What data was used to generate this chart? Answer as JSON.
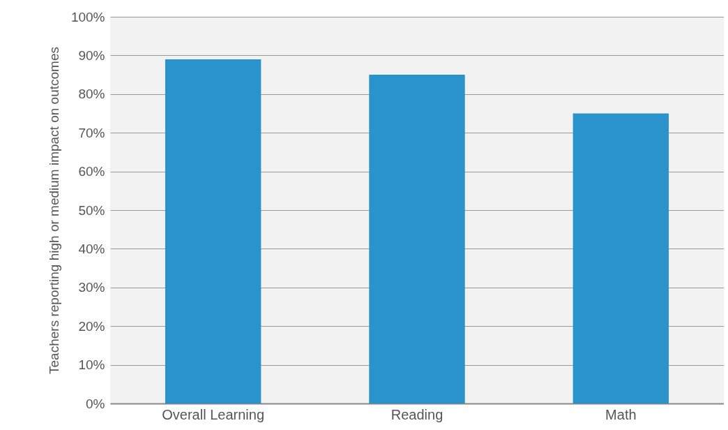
{
  "chart_data": {
    "type": "bar",
    "ylabel": "Teachers reporting high or medium impact on outcomes",
    "categories": [
      "Overall Learning",
      "Reading",
      "Math"
    ],
    "values": [
      89,
      85,
      75
    ],
    "color": "#2b93cc",
    "ylim": [
      0,
      100
    ],
    "yticks": [
      {
        "value": 0,
        "label": "0%"
      },
      {
        "value": 10,
        "label": "10%"
      },
      {
        "value": 20,
        "label": "20%"
      },
      {
        "value": 30,
        "label": "30%"
      },
      {
        "value": 40,
        "label": "40%"
      },
      {
        "value": 50,
        "label": "50%"
      },
      {
        "value": 60,
        "label": "60%"
      },
      {
        "value": 70,
        "label": "70%"
      },
      {
        "value": 80,
        "label": "80%"
      },
      {
        "value": 90,
        "label": "90%"
      },
      {
        "value": 100,
        "label": "100%"
      }
    ],
    "grid": "y"
  }
}
